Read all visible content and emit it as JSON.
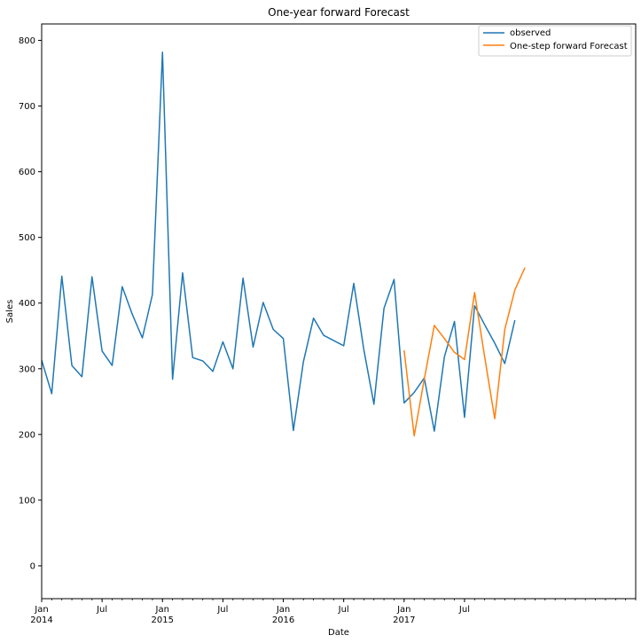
{
  "chart_data": {
    "type": "line",
    "title": "One-year forward Forecast",
    "xlabel": "Date",
    "ylabel": "Sales",
    "ylim": [
      -50,
      825
    ],
    "xlim": [
      "2014-01",
      "2018-12"
    ],
    "yticks": [
      0,
      100,
      200,
      300,
      400,
      500,
      600,
      700,
      800
    ],
    "xticks_major": [
      {
        "date": "2014-01",
        "label": "Jan",
        "year": "2014"
      },
      {
        "date": "2014-07",
        "label": "Jul",
        "year": ""
      },
      {
        "date": "2015-01",
        "label": "Jan",
        "year": "2015"
      },
      {
        "date": "2015-07",
        "label": "Jul",
        "year": ""
      },
      {
        "date": "2016-01",
        "label": "Jan",
        "year": "2016"
      },
      {
        "date": "2016-07",
        "label": "Jul",
        "year": ""
      },
      {
        "date": "2017-01",
        "label": "Jan",
        "year": "2017"
      },
      {
        "date": "2017-07",
        "label": "Jul",
        "year": ""
      }
    ],
    "grid": false,
    "legend_position": "top-right",
    "series": [
      {
        "name": "observed",
        "color": "#1f77b4",
        "x": [
          "2014-01",
          "2014-02",
          "2014-03",
          "2014-04",
          "2014-05",
          "2014-06",
          "2014-07",
          "2014-08",
          "2014-09",
          "2014-10",
          "2014-11",
          "2014-12",
          "2015-01",
          "2015-02",
          "2015-03",
          "2015-04",
          "2015-05",
          "2015-06",
          "2015-07",
          "2015-08",
          "2015-09",
          "2015-10",
          "2015-11",
          "2015-12",
          "2016-01",
          "2016-02",
          "2016-03",
          "2016-04",
          "2016-05",
          "2016-06",
          "2016-07",
          "2016-08",
          "2016-09",
          "2016-10",
          "2016-11",
          "2016-12",
          "2017-01",
          "2017-02",
          "2017-03",
          "2017-04",
          "2017-05",
          "2017-06",
          "2017-07",
          "2017-08",
          "2017-09",
          "2017-10",
          "2017-11",
          "2017-12"
        ],
        "values": [
          313,
          262,
          441,
          305,
          288,
          440,
          327,
          305,
          425,
          383,
          347,
          413,
          782,
          284,
          446,
          317,
          312,
          296,
          341,
          300,
          438,
          333,
          401,
          360,
          346,
          206,
          311,
          377,
          351,
          343,
          335,
          430,
          329,
          246,
          392,
          436,
          248,
          264,
          286,
          205,
          318,
          372,
          226,
          396,
          367,
          339,
          308,
          374
        ]
      },
      {
        "name": "One-step forward Forecast",
        "color": "#ff7f0e",
        "x": [
          "2017-01",
          "2017-02",
          "2017-03",
          "2017-04",
          "2017-05",
          "2017-06",
          "2017-07",
          "2017-08",
          "2017-09",
          "2017-10",
          "2017-11",
          "2017-12",
          "2018-01"
        ],
        "values": [
          328,
          198,
          284,
          366,
          346,
          325,
          314,
          416,
          318,
          224,
          360,
          420,
          454
        ]
      }
    ]
  }
}
